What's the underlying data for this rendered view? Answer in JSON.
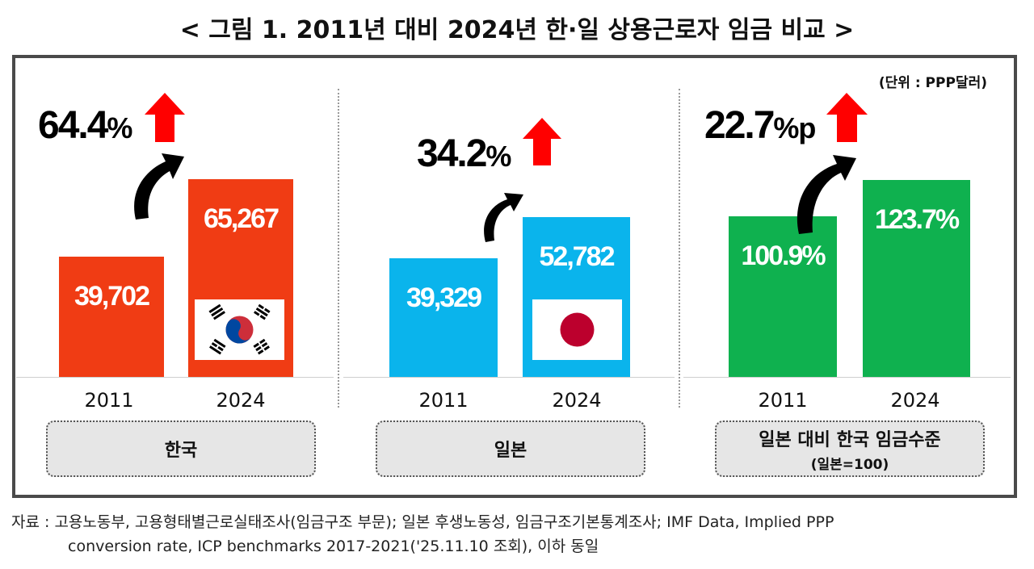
{
  "title": "< 그림 1. 2011년 대비 2024년 한·일 상용근로자 임금 비교 >",
  "unit_note": "(단위 : PPP달러)",
  "colors": {
    "korea_bar": "#f03c14",
    "japan_bar": "#0ab4ec",
    "ratio_bar": "#0fb14f",
    "arrow_up": "#ff0000",
    "curve_arrow": "#000000"
  },
  "chart_data": [
    {
      "type": "bar",
      "categories": [
        "2011",
        "2024"
      ],
      "values": [
        39702,
        65267
      ],
      "value_labels": [
        "39,702",
        "65,267"
      ],
      "group_label": "한국",
      "change": {
        "value": "64.4",
        "unit": "%"
      },
      "ylim": [
        0,
        80000
      ],
      "flag": "south-korea-flag-icon"
    },
    {
      "type": "bar",
      "categories": [
        "2011",
        "2024"
      ],
      "values": [
        39329,
        52782
      ],
      "value_labels": [
        "39,329",
        "52,782"
      ],
      "group_label": "일본",
      "change": {
        "value": "34.2",
        "unit": "%"
      },
      "ylim": [
        0,
        80000
      ],
      "flag": "japan-flag-icon"
    },
    {
      "type": "bar",
      "categories": [
        "2011",
        "2024"
      ],
      "values": [
        100.9,
        123.7
      ],
      "value_labels": [
        "100.9%",
        "123.7%"
      ],
      "group_label": "일본 대비 한국 임금수준",
      "group_sublabel": "(일본=100)",
      "change": {
        "value": "22.7",
        "unit": "%p"
      },
      "ylim": [
        0,
        152
      ]
    }
  ],
  "source": {
    "line1": "자료 : 고용노동부, 고용형태별근로실태조사(임금구조 부문); 일본 후생노동성, 임금구조기본통계조사; IMF Data, Implied PPP",
    "line2": "conversion rate, ICP benchmarks 2017-2021('25.11.10 조회), 이하 동일"
  }
}
